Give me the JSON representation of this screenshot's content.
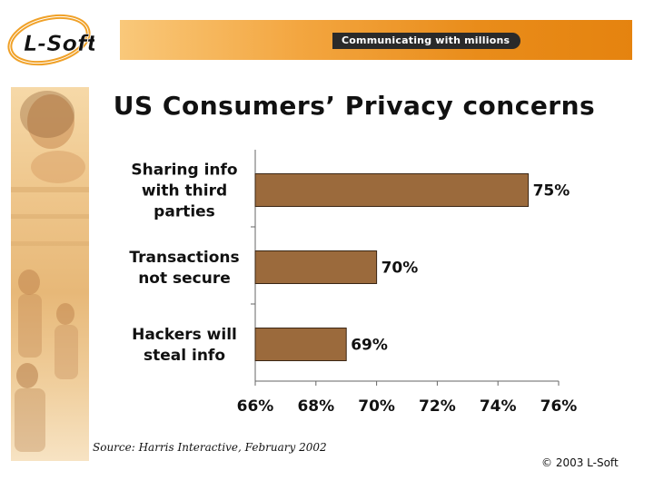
{
  "header": {
    "logo_text": "L-Soft",
    "tagline": "Communicating with millions"
  },
  "slide_title": "US Consumers’ Privacy concerns",
  "chart_data": {
    "type": "bar",
    "orientation": "horizontal",
    "categories": [
      [
        "Sharing info",
        "with third",
        "parties"
      ],
      [
        "Transactions",
        "not secure"
      ],
      [
        "Hackers will",
        "steal info"
      ]
    ],
    "values": [
      75,
      70,
      69
    ],
    "data_labels": [
      "75%",
      "70%",
      "69%"
    ],
    "xlim": [
      66,
      76
    ],
    "x_ticks": [
      "66%",
      "68%",
      "70%",
      "72%",
      "74%",
      "76%"
    ],
    "title": "",
    "xlabel": "",
    "ylabel": "",
    "bar_color": "#9b6a3c",
    "grid": false,
    "legend": "none"
  },
  "footer": {
    "source": "Source: Harris Interactive, February 2002",
    "copyright": "© 2003 L-Soft"
  },
  "colors": {
    "banner": "#e98c1a",
    "bar": "#9b6a3c",
    "text": "#111111"
  }
}
